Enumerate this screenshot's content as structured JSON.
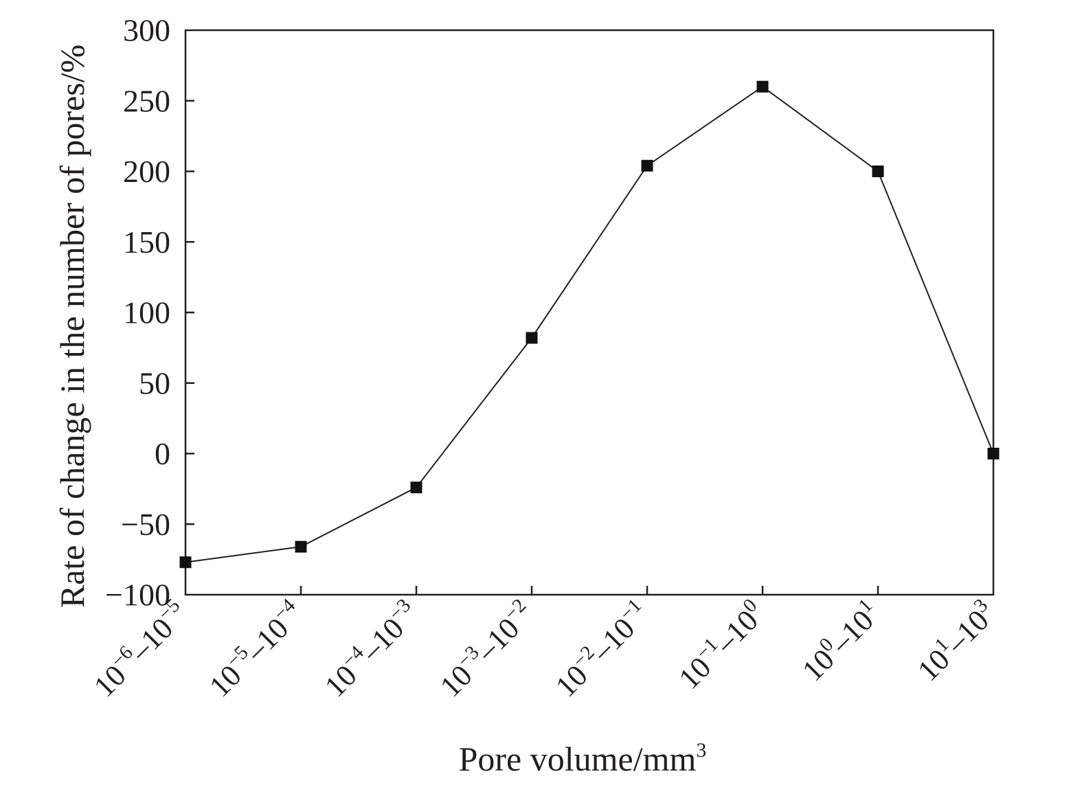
{
  "chart_data": {
    "type": "line",
    "xlabel": "Pore volume/mm3",
    "ylabel": "Rate of change in the number of pores/%",
    "ylim": [
      -100,
      300
    ],
    "yticks": [
      -100,
      -50,
      0,
      50,
      100,
      150,
      200,
      250,
      300
    ],
    "grid": false,
    "legend": "none",
    "categories": [
      "10−6–10−5",
      "10−5–10−4",
      "10−4–10−3",
      "10−3–10−2",
      "10−2–10−1",
      "10−1–100",
      "100–101",
      "101–103"
    ],
    "category_parts": [
      [
        "10",
        "−6",
        "–10",
        "−5"
      ],
      [
        "10",
        "−5",
        "–10",
        "−4"
      ],
      [
        "10",
        "−4",
        "–10",
        "−3"
      ],
      [
        "10",
        "−3",
        "–10",
        "−2"
      ],
      [
        "10",
        "−2",
        "–10",
        "−1"
      ],
      [
        "10",
        "−1",
        "–10",
        "0"
      ],
      [
        "10",
        "0",
        "–10",
        "1"
      ],
      [
        "10",
        "1",
        "–10",
        "3"
      ]
    ],
    "series": [
      {
        "values": [
          -77,
          -66,
          -24,
          82,
          204,
          260,
          200,
          0
        ]
      }
    ],
    "colors": {
      "line": "#231f20",
      "marker": "#111111",
      "axis": "#231f20"
    }
  }
}
